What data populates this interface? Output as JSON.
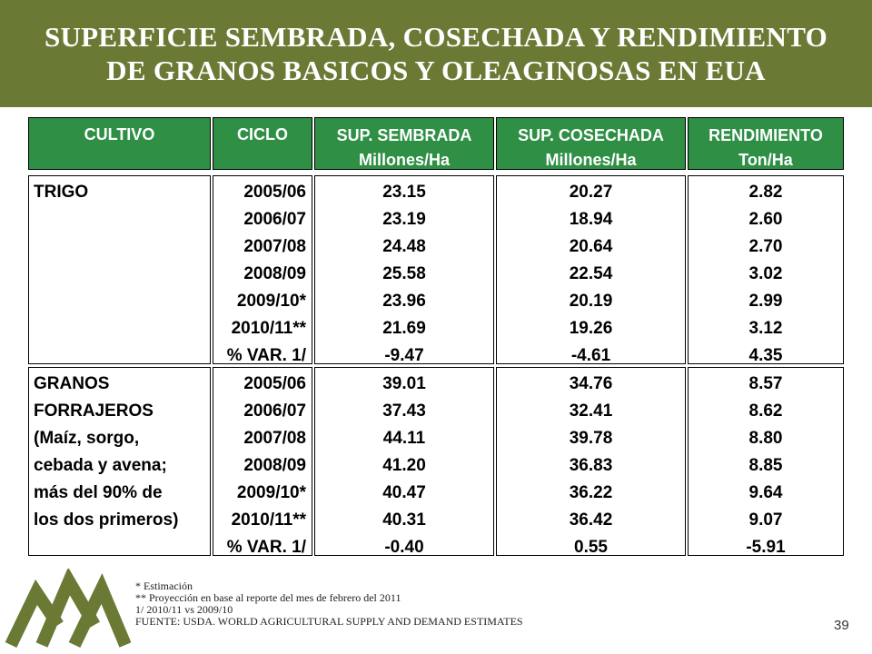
{
  "title": {
    "line1": "SUPERFICIE SEMBRADA, COSECHADA  Y RENDIMIENTO",
    "line2": "DE GRANOS BASICOS Y OLEAGINOSAS EN EUA"
  },
  "headers": {
    "cultivo": "CULTIVO",
    "ciclo": "CICLO",
    "sembrada": [
      "SUP. SEMBRADA",
      "Millones/Ha"
    ],
    "cosechada": [
      "SUP. COSECHADA",
      "Millones/Ha"
    ],
    "rendimiento": [
      "RENDIMIENTO",
      "Ton/Ha"
    ]
  },
  "groups": [
    {
      "cultivo": [
        "TRIGO"
      ],
      "ciclo": [
        "2005/06",
        "2006/07",
        "2007/08",
        "2008/09",
        "2009/10*",
        "2010/11**",
        "% VAR. 1/"
      ],
      "sembrada": [
        "23.15",
        "23.19",
        "24.48",
        "25.58",
        "23.96",
        "21.69",
        "-9.47"
      ],
      "cosechada": [
        "20.27",
        "18.94",
        "20.64",
        "22.54",
        "20.19",
        "19.26",
        "-4.61"
      ],
      "rendimiento": [
        "2.82",
        "2.60",
        "2.70",
        "3.02",
        "2.99",
        "3.12",
        "4.35"
      ]
    },
    {
      "cultivo": [
        "GRANOS",
        "FORRAJEROS",
        "(Maíz, sorgo,",
        "cebada y avena;",
        "más del 90% de",
        "los dos primeros)"
      ],
      "ciclo": [
        "2005/06",
        "2006/07",
        "2007/08",
        "2008/09",
        "2009/10*",
        "2010/11**",
        "% VAR. 1/"
      ],
      "sembrada": [
        "39.01",
        "37.43",
        "44.11",
        "41.20",
        "40.47",
        "40.31",
        "-0.40"
      ],
      "cosechada": [
        "34.76",
        "32.41",
        "39.78",
        "36.83",
        "36.22",
        "36.42",
        "0.55"
      ],
      "rendimiento": [
        "8.57",
        "8.62",
        "8.80",
        "8.85",
        "9.64",
        "9.07",
        "-5.91"
      ]
    }
  ],
  "footnotes": [
    "* Estimación",
    "** Proyección en base al reporte  del mes de febrero del 2011",
    "1/ 2010/11 vs 2009/10",
    "FUENTE: USDA. WORLD AGRICULTURAL SUPPLY AND DEMAND ESTIMATES"
  ],
  "page_number": "39",
  "colors": {
    "banner": "#6a7a35",
    "header_fill": "#2e8f45",
    "logo": "#6a7a35"
  }
}
